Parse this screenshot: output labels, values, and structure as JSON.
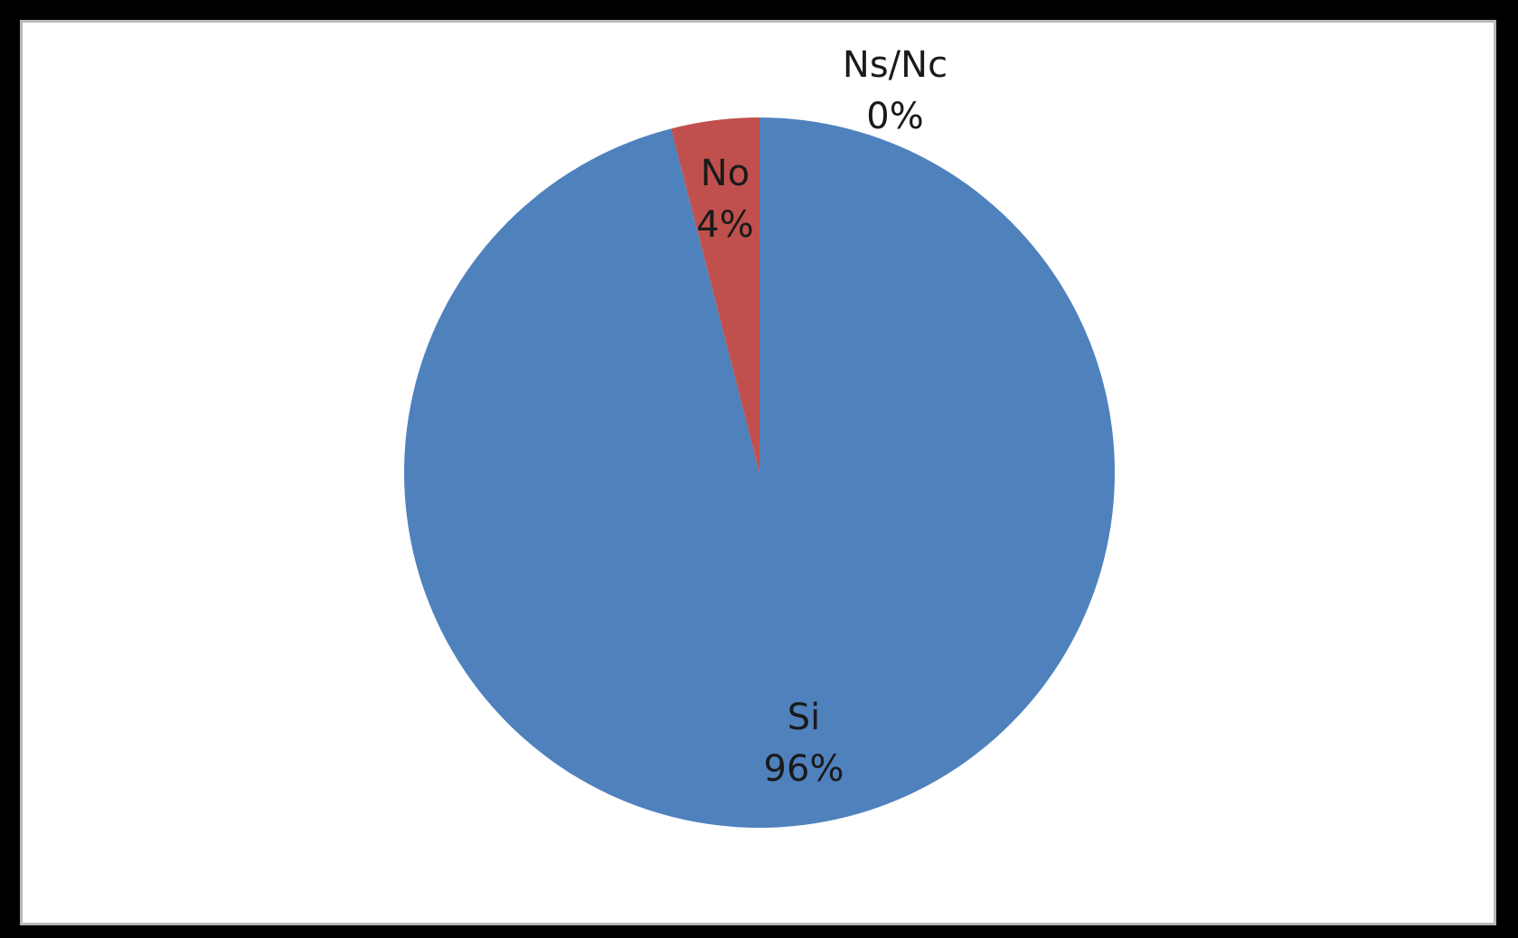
{
  "chart_data": {
    "type": "pie",
    "title": "",
    "slices": [
      {
        "label": "Si",
        "value": 96,
        "percent_label": "96%",
        "color": "#4F81BD"
      },
      {
        "label": "No",
        "value": 4,
        "percent_label": "4%",
        "color": "#C0504D"
      },
      {
        "label": "Ns/Nc",
        "value": 0,
        "percent_label": "0%",
        "color": "#9BBB59"
      }
    ],
    "legend": "none",
    "start_angle": "12 o'clock",
    "direction": "clockwise"
  }
}
